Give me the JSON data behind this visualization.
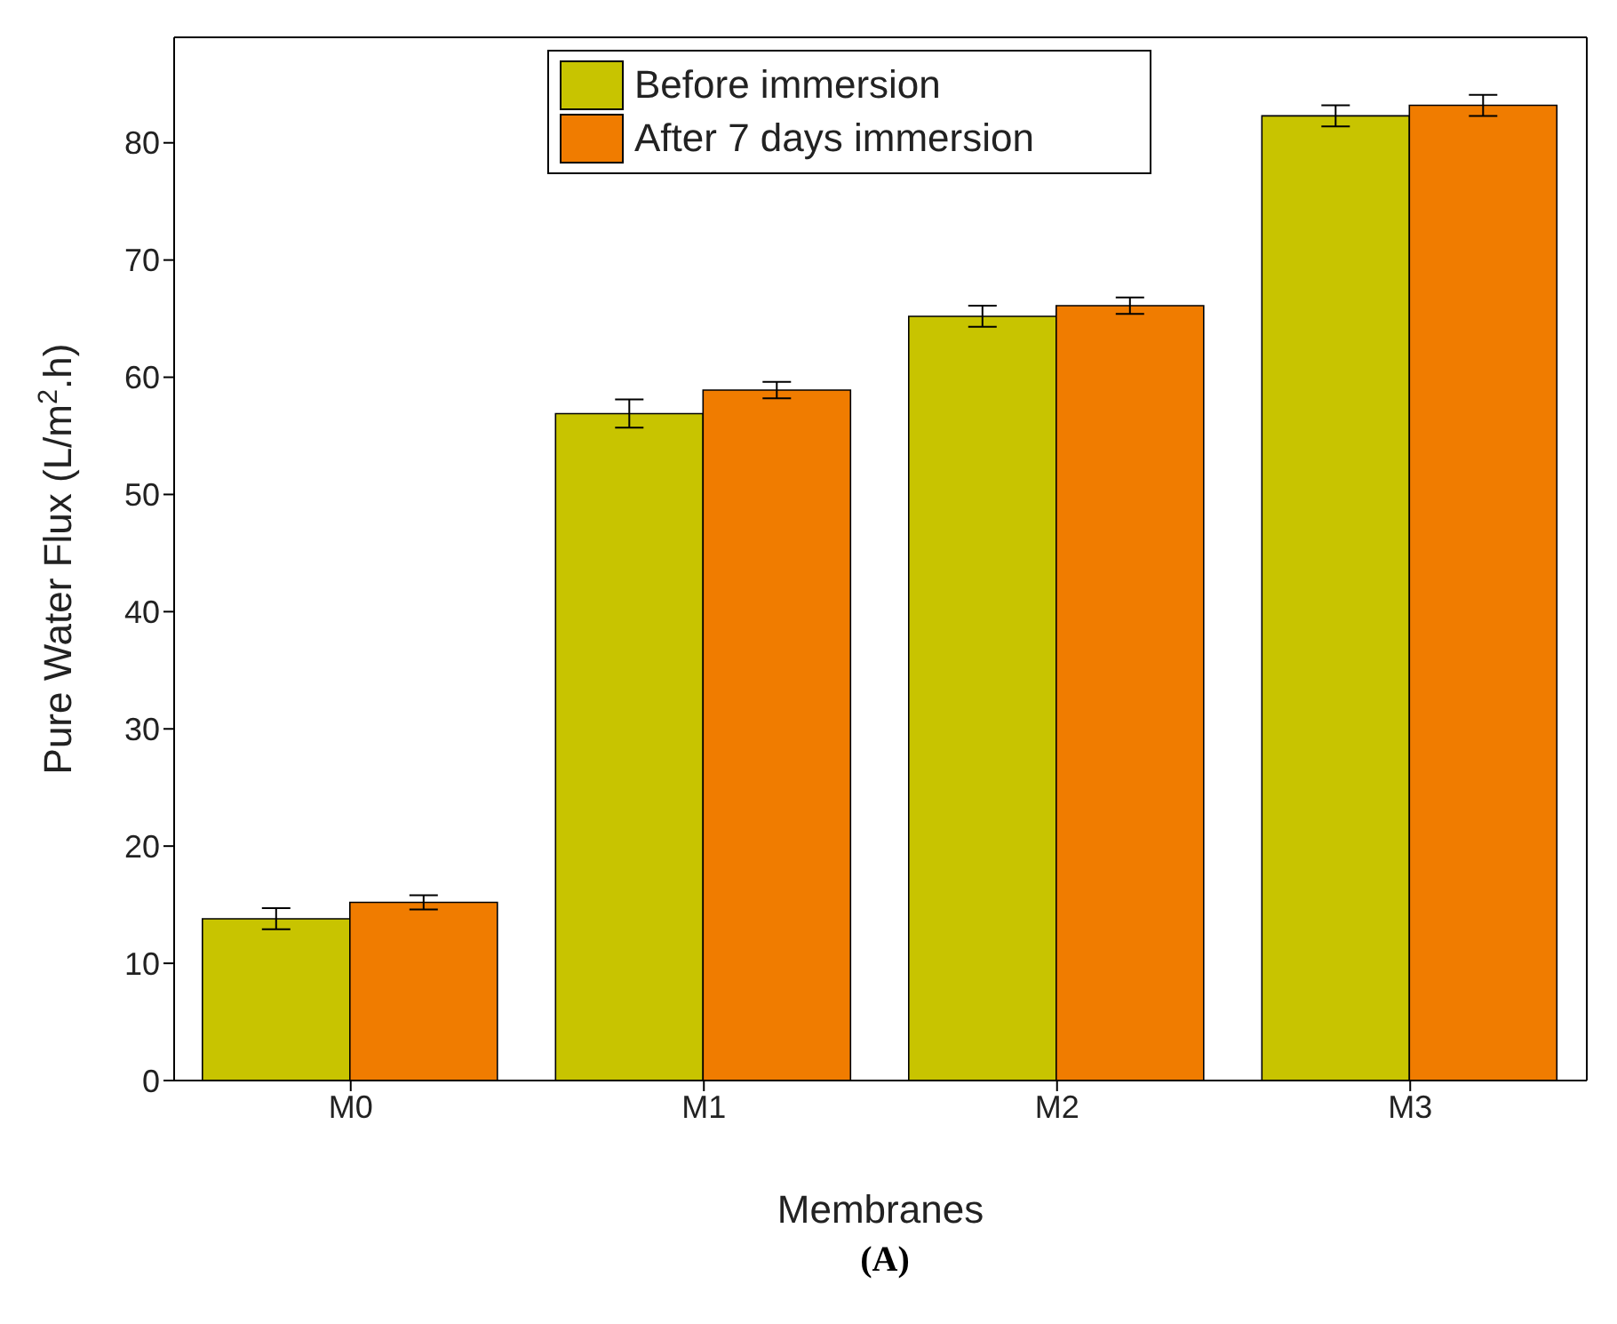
{
  "chart_data": {
    "type": "bar",
    "xlabel": "Membranes",
    "ylabel": "Pure Water Flux (L/m$^{2}$.h)",
    "categories": [
      "M0",
      "M1",
      "M2",
      "M3"
    ],
    "series": [
      {
        "name": "Before immersion",
        "color": "#c8c400",
        "values": [
          13.8,
          56.9,
          65.2,
          82.3
        ],
        "errors": [
          0.9,
          1.2,
          0.9,
          0.9
        ]
      },
      {
        "name": "After 7 days immersion",
        "color": "#f07c00",
        "values": [
          15.2,
          58.9,
          66.1,
          83.2
        ],
        "errors": [
          0.6,
          0.7,
          0.7,
          0.9
        ]
      }
    ],
    "ylim": [
      0,
      89
    ],
    "yticks": [
      0,
      10,
      20,
      30,
      40,
      50,
      60,
      70,
      80
    ],
    "grid": false,
    "legend": "top",
    "annotations": [
      "(A)"
    ]
  }
}
